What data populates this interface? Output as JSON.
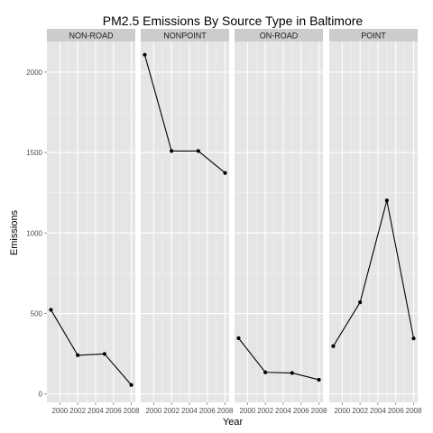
{
  "chart_data": {
    "type": "line",
    "title": "PM2.5 Emissions By Source Type in Baltimore",
    "xlabel": "Year",
    "ylabel": "Emissions",
    "x": [
      1999,
      2002,
      2005,
      2008
    ],
    "x_ticks": [
      2000,
      2002,
      2004,
      2006,
      2008
    ],
    "x_tick_labels": [
      "2000",
      "2002",
      "2004",
      "2006",
      "2008"
    ],
    "xlim": [
      1998.55,
      2008.45
    ],
    "y_ticks": [
      0,
      500,
      1000,
      1500,
      2000
    ],
    "y_tick_labels": [
      "0",
      "500",
      "1000",
      "1500",
      "2000"
    ],
    "ylim": [
      -52,
      2190
    ],
    "grid": true,
    "facets": [
      {
        "label": "NON-ROAD",
        "values": [
          522.9,
          240.8,
          248.9,
          55.8
        ]
      },
      {
        "label": "NONPOINT",
        "values": [
          2107.6,
          1509.5,
          1509.5,
          1373.2
        ]
      },
      {
        "label": "ON-ROAD",
        "values": [
          346.8,
          134.3,
          130.4,
          88.3
        ]
      },
      {
        "label": "POINT",
        "values": [
          296.8,
          569.3,
          1202.5,
          344.98
        ]
      }
    ],
    "colors": {
      "panel_bg": "#E5E5E5",
      "strip_bg": "#CCCCCC",
      "grid_major": "#FFFFFF",
      "grid_minor": "#F2F2F2",
      "line": "#000000",
      "point": "#000000"
    }
  }
}
